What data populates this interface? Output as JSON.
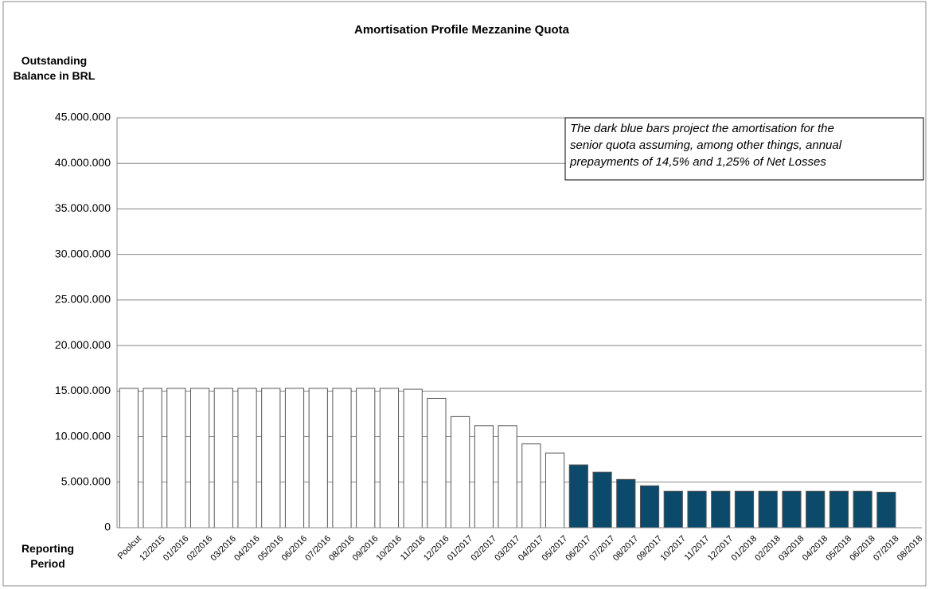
{
  "chart_data": {
    "type": "bar",
    "title": "Amortisation Profile Mezzanine Quota",
    "y_label": "Outstanding Balance in BRL",
    "x_label": "Reporting Period",
    "annotation": [
      "The dark blue bars project the amortisation for the",
      "senior quota assuming, among other things, annual",
      "prepayments of 14,5% and 1,25% of Net Losses"
    ],
    "categories": [
      "Poolcut",
      "12/2015",
      "01/2016",
      "02/2016",
      "03/2016",
      "04/2016",
      "05/2016",
      "06/2016",
      "07/2016",
      "08/2016",
      "09/2016",
      "10/2016",
      "11/2016",
      "12/2016",
      "01/2017",
      "02/2017",
      "03/2017",
      "04/2017",
      "05/2017",
      "06/2017",
      "07/2017",
      "08/2017",
      "09/2017",
      "10/2017",
      "11/2017",
      "12/2017",
      "01/2018",
      "02/2018",
      "03/2018",
      "04/2018",
      "05/2018",
      "06/2018",
      "07/2018",
      "08/2018"
    ],
    "values": [
      15300000,
      15300000,
      15300000,
      15300000,
      15300000,
      15300000,
      15300000,
      15300000,
      15300000,
      15300000,
      15300000,
      15300000,
      15200000,
      14200000,
      12200000,
      11200000,
      11200000,
      9200000,
      8200000,
      6900000,
      6100000,
      5300000,
      4600000,
      4000000,
      4000000,
      4000000,
      4000000,
      4000000,
      4000000,
      4000000,
      4000000,
      4000000,
      3900000,
      null
    ],
    "colors": [
      "#ffffff",
      "#ffffff",
      "#ffffff",
      "#ffffff",
      "#ffffff",
      "#ffffff",
      "#ffffff",
      "#ffffff",
      "#ffffff",
      "#ffffff",
      "#ffffff",
      "#ffffff",
      "#ffffff",
      "#ffffff",
      "#ffffff",
      "#ffffff",
      "#ffffff",
      "#ffffff",
      "#ffffff",
      "#0b4a6b",
      "#0b4a6b",
      "#0b4a6b",
      "#0b4a6b",
      "#0b4a6b",
      "#0b4a6b",
      "#0b4a6b",
      "#0b4a6b",
      "#0b4a6b",
      "#0b4a6b",
      "#0b4a6b",
      "#0b4a6b",
      "#0b4a6b",
      "#0b4a6b",
      "#0b4a6b"
    ],
    "ylim": [
      0,
      45000000
    ],
    "yticks": [
      0,
      {
        "value": 5000000,
        "label": "5.000.000"
      },
      {
        "value": 10000000,
        "label": "10.000.000"
      },
      {
        "value": 15000000,
        "label": "15.000.000"
      },
      {
        "value": 20000000,
        "label": "20.000.000"
      },
      {
        "value": 25000000,
        "label": "25.000.000"
      },
      {
        "value": 30000000,
        "label": "30.000.000"
      },
      {
        "value": 35000000,
        "label": "35.000.000"
      },
      {
        "value": 40000000,
        "label": "40.000.000"
      },
      {
        "value": 45000000,
        "label": "45.000.000"
      }
    ],
    "grid": true
  }
}
